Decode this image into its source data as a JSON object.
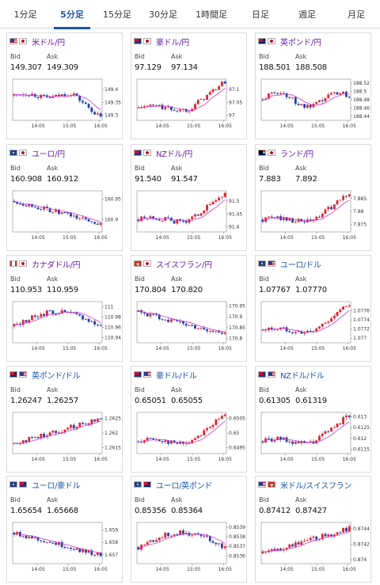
{
  "tabs": [
    {
      "label": "1分足"
    },
    {
      "label": "5分足",
      "active": true
    },
    {
      "label": "15分足"
    },
    {
      "label": "30分足"
    },
    {
      "label": "1時間足"
    },
    {
      "label": "日足"
    },
    {
      "label": "週足"
    },
    {
      "label": "月足"
    }
  ],
  "bid_label": "Bid",
  "ask_label": "Ask",
  "colors": {
    "up": "#e5202e",
    "down": "#1f3fb0",
    "ma": "#cc33cc",
    "pair_purple": "#6a1fa8",
    "pair_blue": "#1a56a6",
    "active_tab": "#1a56a6"
  },
  "cards": [
    {
      "pair": "米ドル/円",
      "flags": [
        "us-flag",
        "jp-flag"
      ],
      "bid": "149.307",
      "ask": "149.309",
      "x_ticks": [
        "14:05",
        "15:05",
        "16:05"
      ],
      "y_ticks": [
        "149.4",
        "149.35",
        "149.3"
      ],
      "y_range": [
        149.28,
        149.44
      ],
      "trend": "down-late"
    },
    {
      "pair": "豪ドル/円",
      "flags": [
        "au-flag",
        "jp-flag"
      ],
      "bid": "97.129",
      "ask": "97.134",
      "x_ticks": [
        "14:05",
        "15:05",
        "16:05"
      ],
      "y_ticks": [
        "97.1",
        "97.05",
        "97"
      ],
      "y_range": [
        96.98,
        97.14
      ],
      "trend": "up-late"
    },
    {
      "pair": "英ポンド/円",
      "flags": [
        "gb-flag",
        "jp-flag"
      ],
      "bid": "188.501",
      "ask": "188.508",
      "x_ticks": [
        "14:05",
        "15:05",
        "16:05"
      ],
      "y_ticks": [
        "188.52",
        "188.5",
        "188.48",
        "188.46",
        "188.44"
      ],
      "y_range": [
        188.43,
        188.53
      ],
      "trend": "flat"
    },
    {
      "pair": "ユーロ/円",
      "flags": [
        "eu-flag",
        "jp-flag"
      ],
      "bid": "160.908",
      "ask": "160.912",
      "x_ticks": [
        "14:05",
        "15:05",
        "16:05"
      ],
      "y_ticks": [
        "160.95",
        "160.9"
      ],
      "y_range": [
        160.87,
        160.97
      ],
      "trend": "down"
    },
    {
      "pair": "NZドル/円",
      "flags": [
        "nz-flag",
        "jp-flag"
      ],
      "bid": "91.540",
      "ask": "91.547",
      "x_ticks": [
        "14:05",
        "15:05",
        "16:05"
      ],
      "y_ticks": [
        "91.5",
        "91.45",
        "91.4"
      ],
      "y_range": [
        91.38,
        91.54
      ],
      "trend": "up-late"
    },
    {
      "pair": "ランド/円",
      "flags": [
        "za-flag",
        "jp-flag"
      ],
      "bid": "7.883",
      "ask": "7.892",
      "x_ticks": [
        "14:05",
        "15:05",
        "16:05"
      ],
      "y_ticks": [
        "7.885",
        "7.88",
        "7.875"
      ],
      "y_range": [
        7.872,
        7.888
      ],
      "trend": "up-late"
    },
    {
      "pair": "カナダドル/円",
      "flags": [
        "ca-flag",
        "jp-flag"
      ],
      "bid": "110.953",
      "ask": "110.959",
      "x_ticks": [
        "14:05",
        "15:05",
        "16:05"
      ],
      "y_ticks": [
        "111",
        "110.98",
        "110.96",
        "110.94"
      ],
      "y_range": [
        110.93,
        111.01
      ],
      "trend": "mid-peak"
    },
    {
      "pair": "スイスフラン/円",
      "flags": [
        "ch-flag",
        "jp-flag"
      ],
      "bid": "170.804",
      "ask": "170.820",
      "x_ticks": [
        "14:05",
        "15:05",
        "16:05"
      ],
      "y_ticks": [
        "170.95",
        "170.9",
        "170.85",
        "170.8"
      ],
      "y_range": [
        170.78,
        170.97
      ],
      "trend": "down"
    },
    {
      "pair": "ユーロ/ドル",
      "flags": [
        "eu-flag",
        "us-flag"
      ],
      "bid": "1.07767",
      "ask": "1.07770",
      "x_ticks": [
        "14:05",
        "15:05",
        "16:05"
      ],
      "y_ticks": [
        "1.0776",
        "1.0774",
        "1.0772",
        "1.077"
      ],
      "y_range": [
        1.0769,
        1.0778
      ],
      "trend": "up-late"
    },
    {
      "pair": "英ポンド/ドル",
      "flags": [
        "gb-flag",
        "us-flag"
      ],
      "bid": "1.26247",
      "ask": "1.26257",
      "x_ticks": [
        "14:05",
        "15:05",
        "16:05"
      ],
      "y_ticks": [
        "1.2625",
        "1.262",
        "1.2615"
      ],
      "y_range": [
        1.2613,
        1.2627
      ],
      "trend": "up"
    },
    {
      "pair": "豪ドル/ドル",
      "flags": [
        "au-flag",
        "us-flag"
      ],
      "bid": "0.65051",
      "ask": "0.65055",
      "x_ticks": [
        "14:05",
        "15:05",
        "16:05"
      ],
      "y_ticks": [
        "0.6505",
        "0.65",
        "0.6495"
      ],
      "y_range": [
        0.6493,
        0.6507
      ],
      "trend": "up-late"
    },
    {
      "pair": "NZドル/ドル",
      "flags": [
        "nz-flag",
        "us-flag"
      ],
      "bid": "0.61305",
      "ask": "0.61319",
      "x_ticks": [
        "14:05",
        "15:05",
        "16:05"
      ],
      "y_ticks": [
        "0.613",
        "0.6125",
        "0.612",
        "0.6115"
      ],
      "y_range": [
        0.6113,
        0.6132
      ],
      "trend": "up-late"
    },
    {
      "pair": "ユーロ/豪ドル",
      "flags": [
        "eu-flag",
        "au-flag"
      ],
      "bid": "1.65654",
      "ask": "1.65668",
      "x_ticks": [
        "14:05",
        "15:05",
        "16:05"
      ],
      "y_ticks": [
        "1.659",
        "1.658",
        "1.657"
      ],
      "y_range": [
        1.6563,
        1.6596
      ],
      "trend": "down"
    },
    {
      "pair": "ユーロ/英ポンド",
      "flags": [
        "eu-flag",
        "gb-flag"
      ],
      "bid": "0.85356",
      "ask": "0.85364",
      "x_ticks": [
        "14:05",
        "15:05",
        "16:05"
      ],
      "y_ticks": [
        "0.8539",
        "0.8538",
        "0.8537",
        "0.8536"
      ],
      "y_range": [
        0.85352,
        0.85395
      ],
      "trend": "mid-peak"
    },
    {
      "pair": "米ドル/スイスフラン",
      "flags": [
        "us-flag",
        "ch-flag"
      ],
      "bid": "0.87412",
      "ask": "0.87427",
      "x_ticks": [
        "14:05",
        "15:05",
        "16:05"
      ],
      "y_ticks": [
        "0.8744",
        "0.8742",
        "0.874"
      ],
      "y_range": [
        0.87395,
        0.87448
      ],
      "trend": "up"
    }
  ]
}
